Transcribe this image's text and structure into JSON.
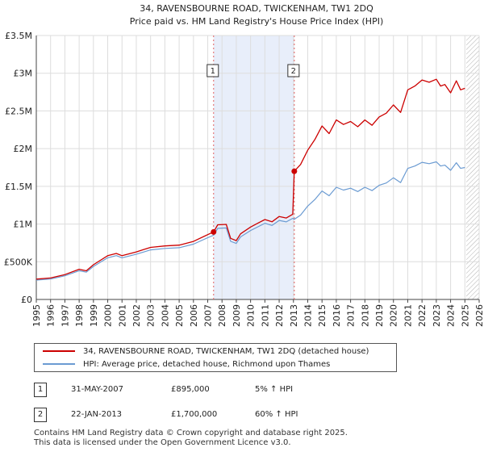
{
  "chart_data": {
    "type": "line",
    "title": "34, RAVENSBOURNE ROAD, TWICKENHAM, TW1 2DQ",
    "subtitle": "Price paid vs. HM Land Registry's House Price Index (HPI)",
    "x_ticks": [
      "1995",
      "1996",
      "1997",
      "1998",
      "1999",
      "2000",
      "2001",
      "2002",
      "2003",
      "2004",
      "2005",
      "2006",
      "2007",
      "2008",
      "2009",
      "2010",
      "2011",
      "2012",
      "2013",
      "2014",
      "2015",
      "2016",
      "2017",
      "2018",
      "2019",
      "2020",
      "2021",
      "2022",
      "2023",
      "2024",
      "2025",
      "2026"
    ],
    "y_ticks": [
      "£0",
      "£500K",
      "£1M",
      "£1.5M",
      "£2M",
      "£2.5M",
      "£3M",
      "£3.5M"
    ],
    "xlim": [
      1995,
      2026
    ],
    "ylim": [
      0,
      3500000
    ],
    "grid": true,
    "shaded_range": [
      2007.41,
      2013.06
    ],
    "future_hatch_from": 2025.1,
    "series": [
      {
        "name": "34, RAVENSBOURNE ROAD, TWICKENHAM, TW1 2DQ (detached house)",
        "color": "#cc0000",
        "x": [
          1995,
          1996,
          1997,
          1998,
          1998.5,
          1999,
          2000,
          2000.6,
          2001,
          2002,
          2002.5,
          2003,
          2004,
          2005,
          2006,
          2007,
          2007.41,
          2007.7,
          2008.3,
          2008.6,
          2009,
          2009.3,
          2010,
          2010.5,
          2011,
          2011.5,
          2012,
          2012.5,
          2012.95,
          2013.06,
          2013.5,
          2014,
          2014.5,
          2015,
          2015.5,
          2016,
          2016.5,
          2017,
          2017.5,
          2018,
          2018.5,
          2019,
          2019.5,
          2020,
          2020.5,
          2021,
          2021.5,
          2022,
          2022.5,
          2023,
          2023.3,
          2023.6,
          2024,
          2024.4,
          2024.7,
          2025
        ],
        "values": [
          270000,
          285000,
          330000,
          400000,
          380000,
          460000,
          580000,
          610000,
          580000,
          630000,
          660000,
          690000,
          710000,
          720000,
          770000,
          860000,
          895000,
          990000,
          995000,
          810000,
          780000,
          870000,
          960000,
          1010000,
          1060000,
          1030000,
          1100000,
          1080000,
          1130000,
          1700000,
          1790000,
          1980000,
          2120000,
          2300000,
          2200000,
          2380000,
          2320000,
          2360000,
          2290000,
          2380000,
          2310000,
          2420000,
          2470000,
          2580000,
          2480000,
          2780000,
          2830000,
          2910000,
          2880000,
          2920000,
          2830000,
          2850000,
          2740000,
          2900000,
          2780000,
          2800000
        ]
      },
      {
        "name": "HPI: Average price, detached house, Richmond upon Thames",
        "color": "#6b9bd2",
        "x": [
          1995,
          1996,
          1997,
          1998,
          1998.5,
          1999,
          2000,
          2000.6,
          2001,
          2002,
          2002.5,
          2003,
          2004,
          2005,
          2006,
          2007,
          2007.41,
          2007.7,
          2008.3,
          2008.6,
          2009,
          2009.3,
          2010,
          2010.5,
          2011,
          2011.5,
          2012,
          2012.5,
          2012.95,
          2013.06,
          2013.5,
          2014,
          2014.5,
          2015,
          2015.5,
          2016,
          2016.5,
          2017,
          2017.5,
          2018,
          2018.5,
          2019,
          2019.5,
          2020,
          2020.5,
          2021,
          2021.5,
          2022,
          2022.5,
          2023,
          2023.3,
          2023.6,
          2024,
          2024.4,
          2024.7,
          2025
        ],
        "values": [
          257000,
          271000,
          314000,
          381000,
          362000,
          438000,
          552000,
          581000,
          552000,
          600000,
          628000,
          657000,
          676000,
          686000,
          733000,
          819000,
          852000,
          943000,
          948000,
          771000,
          743000,
          829000,
          914000,
          962000,
          1010000,
          981000,
          1048000,
          1029000,
          1076000,
          1062000,
          1119000,
          1238000,
          1325000,
          1438000,
          1375000,
          1488000,
          1450000,
          1475000,
          1431000,
          1488000,
          1444000,
          1513000,
          1544000,
          1613000,
          1550000,
          1738000,
          1769000,
          1819000,
          1800000,
          1825000,
          1769000,
          1781000,
          1713000,
          1813000,
          1738000,
          1750000
        ]
      }
    ],
    "sales": [
      {
        "id": "1",
        "date": "31-MAY-2007",
        "price": "£895,000",
        "hpi_change": "5% ↑ HPI",
        "x": 2007.41,
        "value": 895000
      },
      {
        "id": "2",
        "date": "22-JAN-2013",
        "price": "£1,700,000",
        "hpi_change": "60% ↑ HPI",
        "x": 2013.06,
        "value": 1700000
      }
    ]
  },
  "legend": {
    "property_label": "34, RAVENSBOURNE ROAD, TWICKENHAM, TW1 2DQ (detached house)",
    "hpi_label": "HPI: Average price, detached house, Richmond upon Thames",
    "property_color": "#cc0000",
    "hpi_color": "#6b9bd2"
  },
  "footer": {
    "line1": "Contains HM Land Registry data © Crown copyright and database right 2025.",
    "line2": "This data is licensed under the Open Government Licence v3.0."
  }
}
